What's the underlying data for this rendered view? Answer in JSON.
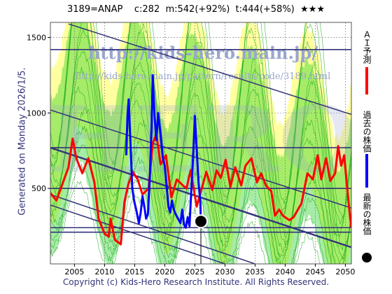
{
  "header": {
    "title": "3189=ANAP    c:282  m:542(+92%)  t:444(+58%)  ★★★"
  },
  "side_note": "Generated on Monday 2026/1/5.",
  "footer": {
    "copyright": "Copyright (c) Kids-Hero Research Institute. All Rights Reserved."
  },
  "watermarks": {
    "main": "http://kids-hero.main.jp/",
    "sub": "http://kids-hero.main.jp/pattern/results/code/3189.html",
    "big": "HERO"
  },
  "legend": [
    {
      "label": "ＡＩ予測",
      "color": "#ff0000",
      "marker": "line"
    },
    {
      "label": "過去の株価",
      "color": "#0000ff",
      "marker": "line"
    },
    {
      "label": "最新の株価",
      "color": "#000000",
      "marker": "dot"
    }
  ],
  "colors": {
    "prediction": "#ff0000",
    "history": "#0000ff",
    "band_green": "#00c800",
    "band_yellow": "#ffff96",
    "trend_line": "#33337a"
  },
  "chart_data": {
    "type": "line",
    "xlim": [
      2001,
      2051
    ],
    "ylim": [
      0,
      1600
    ],
    "x_ticks": [
      2005,
      2010,
      2015,
      2020,
      2025,
      2030,
      2035,
      2040,
      2045,
      2050
    ],
    "y_ticks": [
      500,
      1000,
      1500
    ],
    "grid": true,
    "legend_position": "right",
    "latest_price": {
      "x": 2026.0,
      "y": 282
    },
    "horizontal_levels": [
      1420,
      770,
      500,
      240,
      210
    ],
    "trend_lines": [
      {
        "p1": [
          2004,
          1590
        ],
        "p2": [
          2051,
          990
        ]
      },
      {
        "p1": [
          2001,
          1020
        ],
        "p2": [
          2051,
          370
        ]
      },
      {
        "p1": [
          2001,
          770
        ],
        "p2": [
          2051,
          110
        ]
      },
      {
        "p1": [
          2001,
          460
        ],
        "p2": [
          2035,
          0
        ]
      },
      {
        "p1": [
          2001,
          390
        ],
        "p2": [
          2030,
          0
        ]
      }
    ],
    "series": [
      {
        "name": "過去の株価",
        "points": [
          [
            2013.6,
            720
          ],
          [
            2013.8,
            980
          ],
          [
            2014.0,
            1090
          ],
          [
            2014.3,
            800
          ],
          [
            2014.6,
            500
          ],
          [
            2014.9,
            420
          ],
          [
            2015.3,
            350
          ],
          [
            2015.7,
            270
          ],
          [
            2016.0,
            340
          ],
          [
            2016.3,
            450
          ],
          [
            2016.6,
            380
          ],
          [
            2016.9,
            300
          ],
          [
            2017.2,
            330
          ],
          [
            2017.5,
            560
          ],
          [
            2017.8,
            900
          ],
          [
            2018.0,
            1250
          ],
          [
            2018.3,
            980
          ],
          [
            2018.6,
            820
          ],
          [
            2018.9,
            1000
          ],
          [
            2019.3,
            860
          ],
          [
            2019.7,
            700
          ],
          [
            2020.0,
            650
          ],
          [
            2020.3,
            520
          ],
          [
            2020.6,
            380
          ],
          [
            2020.9,
            340
          ],
          [
            2021.2,
            420
          ],
          [
            2021.5,
            360
          ],
          [
            2021.8,
            330
          ],
          [
            2022.2,
            300
          ],
          [
            2022.6,
            270
          ],
          [
            2022.9,
            360
          ],
          [
            2023.2,
            260
          ],
          [
            2023.5,
            240
          ],
          [
            2023.8,
            310
          ],
          [
            2024.1,
            250
          ],
          [
            2024.4,
            480
          ],
          [
            2024.7,
            700
          ],
          [
            2025.0,
            980
          ],
          [
            2025.3,
            760
          ],
          [
            2025.6,
            540
          ],
          [
            2025.9,
            420
          ],
          [
            2026.0,
            282
          ]
        ]
      },
      {
        "name": "ＡＩ予測",
        "points": [
          [
            2001.0,
            470
          ],
          [
            2002.0,
            420
          ],
          [
            2003.0,
            530
          ],
          [
            2004.0,
            640
          ],
          [
            2004.7,
            830
          ],
          [
            2005.3,
            700
          ],
          [
            2006.3,
            600
          ],
          [
            2007.3,
            700
          ],
          [
            2008.3,
            540
          ],
          [
            2009.0,
            300
          ],
          [
            2010.0,
            200
          ],
          [
            2010.7,
            180
          ],
          [
            2011.0,
            300
          ],
          [
            2011.7,
            160
          ],
          [
            2012.7,
            130
          ],
          [
            2013.3,
            410
          ],
          [
            2013.9,
            520
          ],
          [
            2014.7,
            610
          ],
          [
            2015.5,
            560
          ],
          [
            2016.3,
            460
          ],
          [
            2017.3,
            500
          ],
          [
            2018.0,
            800
          ],
          [
            2018.6,
            860
          ],
          [
            2019.3,
            660
          ],
          [
            2020.2,
            720
          ],
          [
            2021.1,
            440
          ],
          [
            2022.0,
            560
          ],
          [
            2023.0,
            520
          ],
          [
            2023.6,
            500
          ],
          [
            2024.3,
            620
          ],
          [
            2025.3,
            380
          ],
          [
            2026.0,
            480
          ],
          [
            2026.9,
            610
          ],
          [
            2027.9,
            490
          ],
          [
            2028.6,
            620
          ],
          [
            2029.3,
            570
          ],
          [
            2030.1,
            690
          ],
          [
            2030.9,
            510
          ],
          [
            2031.7,
            640
          ],
          [
            2032.7,
            520
          ],
          [
            2033.4,
            650
          ],
          [
            2034.4,
            700
          ],
          [
            2035.3,
            540
          ],
          [
            2036.0,
            600
          ],
          [
            2036.8,
            520
          ],
          [
            2037.7,
            480
          ],
          [
            2038.3,
            320
          ],
          [
            2039.0,
            360
          ],
          [
            2039.6,
            320
          ],
          [
            2040.7,
            290
          ],
          [
            2041.4,
            310
          ],
          [
            2042.7,
            400
          ],
          [
            2043.7,
            600
          ],
          [
            2044.6,
            560
          ],
          [
            2045.4,
            720
          ],
          [
            2046.0,
            560
          ],
          [
            2046.8,
            700
          ],
          [
            2047.5,
            550
          ],
          [
            2048.3,
            600
          ],
          [
            2048.8,
            780
          ],
          [
            2049.3,
            650
          ],
          [
            2049.8,
            720
          ],
          [
            2050.3,
            500
          ],
          [
            2050.8,
            300
          ],
          [
            2051.0,
            240
          ]
        ]
      }
    ]
  }
}
